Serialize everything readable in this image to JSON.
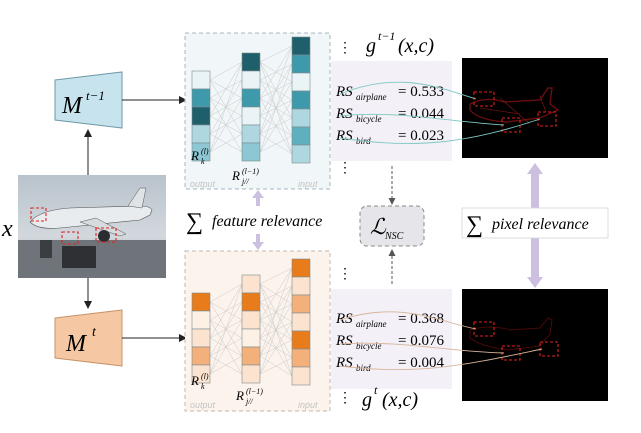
{
  "input": {
    "symbol": "x"
  },
  "models": {
    "prev": {
      "base": "M",
      "sup": "t−1"
    },
    "curr": {
      "base": "M",
      "sup": "t"
    }
  },
  "panels": {
    "top": {
      "left_label_base": "R",
      "left_label_sub": "k",
      "left_label_sup": "(l)",
      "right_label_base": "R",
      "right_label_sub": "j//",
      "right_label_sup": "(l−1)",
      "caption_left": "output",
      "caption_right": "input"
    },
    "bottom": {
      "left_label_base": "R",
      "left_label_sub": "k",
      "left_label_sup": "(l)",
      "right_label_base": "R",
      "right_label_sub": "j//",
      "right_label_sup": "(l−1)",
      "caption_left": "output",
      "caption_right": "input"
    }
  },
  "feature_relevance": {
    "sigma": "∑",
    "text": "feature relevance"
  },
  "pixel_relevance": {
    "sigma": "∑",
    "text": "pixel relevance"
  },
  "loss": {
    "base": "ℒ",
    "sub": "NSC"
  },
  "outputs": {
    "prev": {
      "func": "g",
      "sup": "t−1",
      "args": "(x,c)"
    },
    "curr": {
      "func": "g",
      "sup": "t",
      "args": "(x,c)"
    }
  },
  "scores": {
    "prev": [
      {
        "label": "RS",
        "sub": "airplane",
        "value": "= 0.533"
      },
      {
        "label": "RS",
        "sub": "bicycle",
        "value": "= 0.044"
      },
      {
        "label": "RS",
        "sub": "bird",
        "value": "= 0.023"
      }
    ],
    "curr": [
      {
        "label": "RS",
        "sub": "airplane",
        "value": "= 0.368"
      },
      {
        "label": "RS",
        "sub": "bicycle",
        "value": "= 0.076"
      },
      {
        "label": "RS",
        "sub": "bird",
        "value": "= 0.004"
      }
    ]
  },
  "ellipsis": "⋮",
  "colors": {
    "prev_model": "#c7e4ee",
    "curr_model": "#f5c8a3",
    "top_panel_bg": "#f1f6f8",
    "bottom_panel_bg": "#fcf4ec",
    "score_bg": "#f3f0f8",
    "arrow_lilac": "#cdbfe0",
    "teal_dark": "#1e5f6b",
    "teal_mid": "#3e9aab",
    "teal_light": "#aed7e0",
    "orange_dark": "#e87c1a",
    "orange_mid": "#f3b07a",
    "orange_light": "#fbe3cf"
  }
}
